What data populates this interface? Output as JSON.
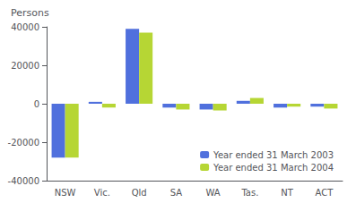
{
  "chart_data": {
    "type": "bar",
    "categories": [
      "NSW",
      "Vic.",
      "Qld",
      "SA",
      "WA",
      "Tas.",
      "NT",
      "ACT"
    ],
    "series": [
      {
        "name": "Year ended 31 March 2003",
        "values": [
          -28000,
          1000,
          39000,
          -2000,
          -3000,
          1500,
          -2000,
          -1500
        ]
      },
      {
        "name": "Year ended 31 March 2004",
        "values": [
          -28000,
          -2000,
          37000,
          -3000,
          -3500,
          3000,
          -1500,
          -2500
        ]
      }
    ],
    "ylabel": "Persons",
    "ylim": [
      -40000,
      40000
    ],
    "yticks": [
      -40000,
      -20000,
      0,
      20000,
      40000
    ],
    "grid": false,
    "legend": "lower right"
  }
}
